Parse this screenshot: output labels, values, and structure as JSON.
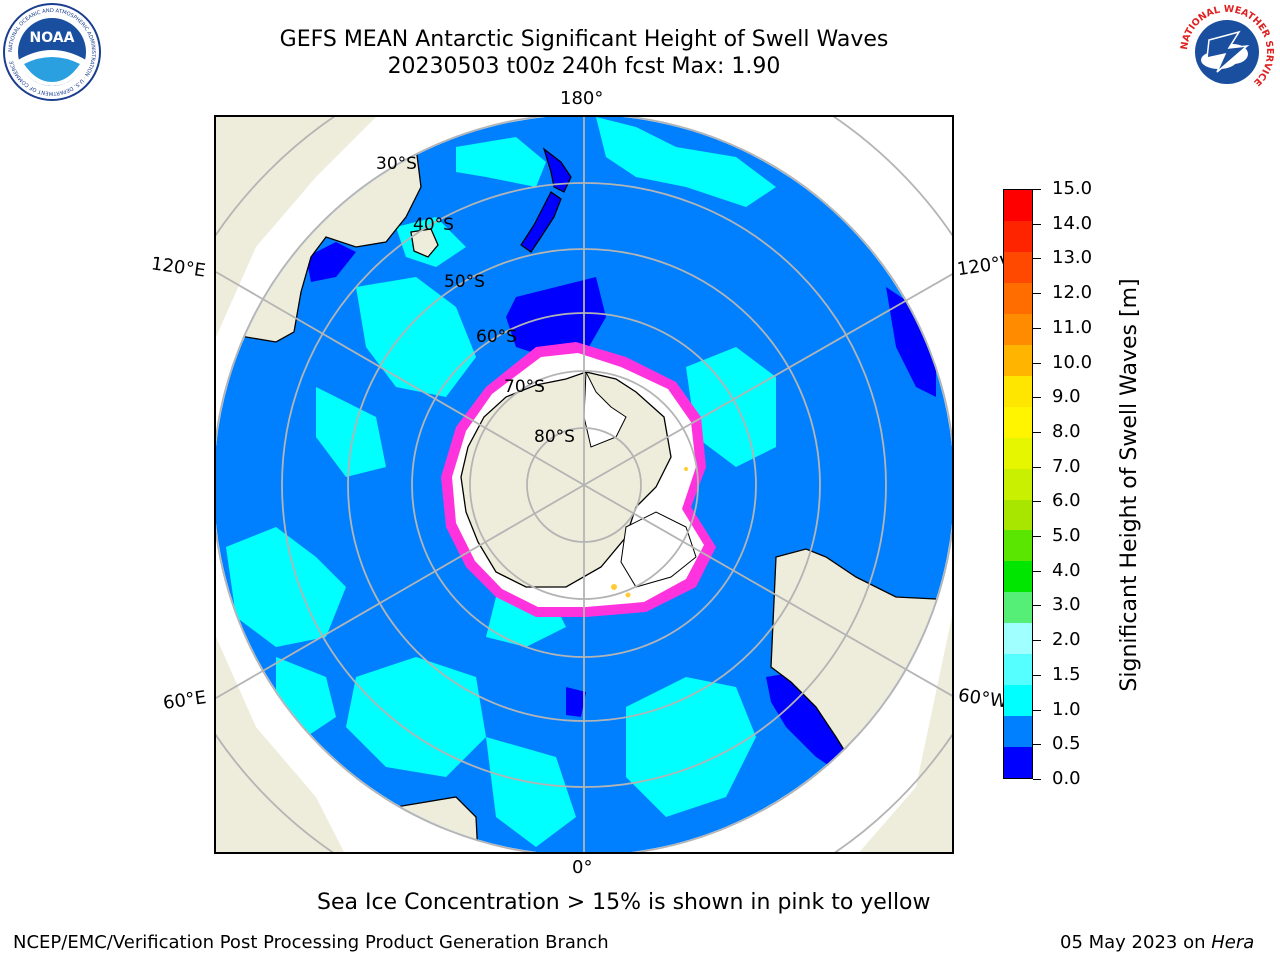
{
  "title_line1": "GEFS MEAN Antarctic Significant Height of Swell Waves",
  "title_line2": "20230503 t00z 240h fcst   Max: 1.90",
  "longitude_labels": {
    "top": "180°",
    "bottom": "0°",
    "upper_left": "120°E",
    "upper_right": "120°W",
    "lower_left": "60°E",
    "lower_right": "60°W"
  },
  "latitude_labels": [
    "30°S",
    "40°S",
    "50°S",
    "60°S",
    "70°S",
    "80°S"
  ],
  "colorbar": {
    "title": "Significant Height of Swell Waves [m]",
    "ticks": [
      "15.0",
      "14.0",
      "13.0",
      "12.0",
      "11.0",
      "10.0",
      "9.0",
      "8.0",
      "7.0",
      "6.0",
      "5.0",
      "4.0",
      "3.0",
      "2.0",
      "1.5",
      "1.0",
      "0.5",
      "0.0"
    ],
    "colors": [
      "#ff0000",
      "#ff2400",
      "#ff4800",
      "#ff6c00",
      "#ff8c00",
      "#ffb400",
      "#ffe600",
      "#fff500",
      "#e6f500",
      "#c8f000",
      "#a8e600",
      "#5ae600",
      "#00e600",
      "#55ee77",
      "#a0ffff",
      "#55ffff",
      "#00ffff",
      "#0080ff",
      "#0000ff"
    ]
  },
  "map_colors": {
    "ocean": "#0080ff",
    "swell_light": "#00ffff",
    "swell_low": "#0000ff",
    "land": "#eeeddc",
    "ice_edge": "#ff33dd",
    "ice_yellow": "#ffcc33",
    "grid": "#b4b4b4"
  },
  "note": "Sea Ice Concentration > 15% is shown in pink to yellow",
  "footer_left": "NCEP/EMC/Verification Post Processing Product Generation Branch",
  "footer_right_date": "05 May 2023 on ",
  "footer_right_host": "Hera",
  "logos": {
    "noaa_text": "NOAA",
    "noaa_ring": "NATIONAL OCEANIC AND ATMOSPHERIC ADMINISTRATION · U.S. DEPARTMENT OF COMMERCE",
    "nws_ring": "NATIONAL WEATHER SERVICE"
  }
}
